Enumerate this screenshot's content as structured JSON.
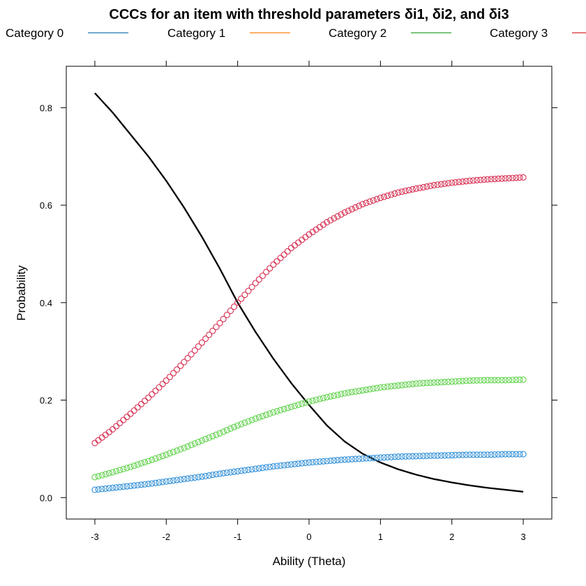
{
  "chart_data": {
    "type": "line",
    "title": "CCCs for an item with threshold parameters δi1, δi2, and δi3",
    "xlabel": "Ability (Theta)",
    "ylabel": "Probability",
    "xlim": [
      -3.4,
      3.4
    ],
    "ylim": [
      -0.044,
      0.885
    ],
    "xticks": [
      -3,
      -2,
      -1,
      0,
      1,
      2,
      3
    ],
    "yticks": [
      0.0,
      0.2,
      0.4,
      0.6,
      0.8
    ],
    "xtick_labels": [
      "-3",
      "-2",
      "-1",
      "0",
      "1",
      "2",
      "3"
    ],
    "ytick_labels": [
      "0.0",
      "0.2",
      "0.4",
      "0.6",
      "0.8"
    ],
    "grid": false,
    "legend_position": "top",
    "legend": [
      {
        "label": "Category 0",
        "color": "#1f77b4"
      },
      {
        "label": "Category 1",
        "color": "#ff7f0e"
      },
      {
        "label": "Category 2",
        "color": "#2ca02c"
      },
      {
        "label": "Category 3",
        "color": "#d62728"
      }
    ],
    "series": [
      {
        "style": "line",
        "color": "#000000",
        "x": [
          -3.0,
          -2.75,
          -2.5,
          -2.25,
          -2.0,
          -1.75,
          -1.5,
          -1.25,
          -1.0,
          -0.75,
          -0.5,
          -0.25,
          0.0,
          0.25,
          0.5,
          0.75,
          1.0,
          1.25,
          1.5,
          1.75,
          2.0,
          2.25,
          2.5,
          2.75,
          3.0
        ],
        "y": [
          0.83,
          0.79,
          0.745,
          0.7,
          0.65,
          0.595,
          0.535,
          0.47,
          0.4,
          0.34,
          0.285,
          0.235,
          0.19,
          0.148,
          0.115,
          0.09,
          0.072,
          0.058,
          0.047,
          0.038,
          0.031,
          0.025,
          0.02,
          0.016,
          0.012
        ]
      },
      {
        "style": "points",
        "color": "#d62f52",
        "x": [
          -3.0,
          -2.75,
          -2.5,
          -2.25,
          -2.0,
          -1.75,
          -1.5,
          -1.25,
          -1.0,
          -0.75,
          -0.5,
          -0.25,
          0.0,
          0.25,
          0.5,
          0.75,
          1.0,
          1.25,
          1.5,
          1.75,
          2.0,
          2.25,
          2.5,
          2.75,
          3.0
        ],
        "y": [
          0.112,
          0.14,
          0.172,
          0.205,
          0.24,
          0.278,
          0.318,
          0.358,
          0.4,
          0.44,
          0.478,
          0.512,
          0.54,
          0.565,
          0.585,
          0.602,
          0.615,
          0.626,
          0.634,
          0.641,
          0.646,
          0.65,
          0.653,
          0.655,
          0.657
        ]
      },
      {
        "style": "points",
        "color": "#5fd24a",
        "x": [
          -3.0,
          -2.75,
          -2.5,
          -2.25,
          -2.0,
          -1.75,
          -1.5,
          -1.25,
          -1.0,
          -0.75,
          -0.5,
          -0.25,
          0.0,
          0.25,
          0.5,
          0.75,
          1.0,
          1.25,
          1.5,
          1.75,
          2.0,
          2.25,
          2.5,
          2.75,
          3.0
        ],
        "y": [
          0.042,
          0.052,
          0.063,
          0.075,
          0.088,
          0.102,
          0.117,
          0.132,
          0.148,
          0.162,
          0.175,
          0.186,
          0.197,
          0.206,
          0.214,
          0.22,
          0.226,
          0.23,
          0.234,
          0.236,
          0.238,
          0.24,
          0.241,
          0.241,
          0.242
        ]
      },
      {
        "style": "points",
        "color": "#2f8fd8",
        "x": [
          -3.0,
          -2.75,
          -2.5,
          -2.25,
          -2.0,
          -1.75,
          -1.5,
          -1.25,
          -1.0,
          -0.75,
          -0.5,
          -0.25,
          0.0,
          0.25,
          0.5,
          0.75,
          1.0,
          1.25,
          1.5,
          1.75,
          2.0,
          2.25,
          2.5,
          2.75,
          3.0
        ],
        "y": [
          0.016,
          0.02,
          0.024,
          0.028,
          0.033,
          0.038,
          0.043,
          0.049,
          0.054,
          0.059,
          0.064,
          0.068,
          0.072,
          0.075,
          0.078,
          0.08,
          0.082,
          0.084,
          0.085,
          0.086,
          0.087,
          0.088,
          0.088,
          0.089,
          0.089
        ]
      }
    ]
  }
}
